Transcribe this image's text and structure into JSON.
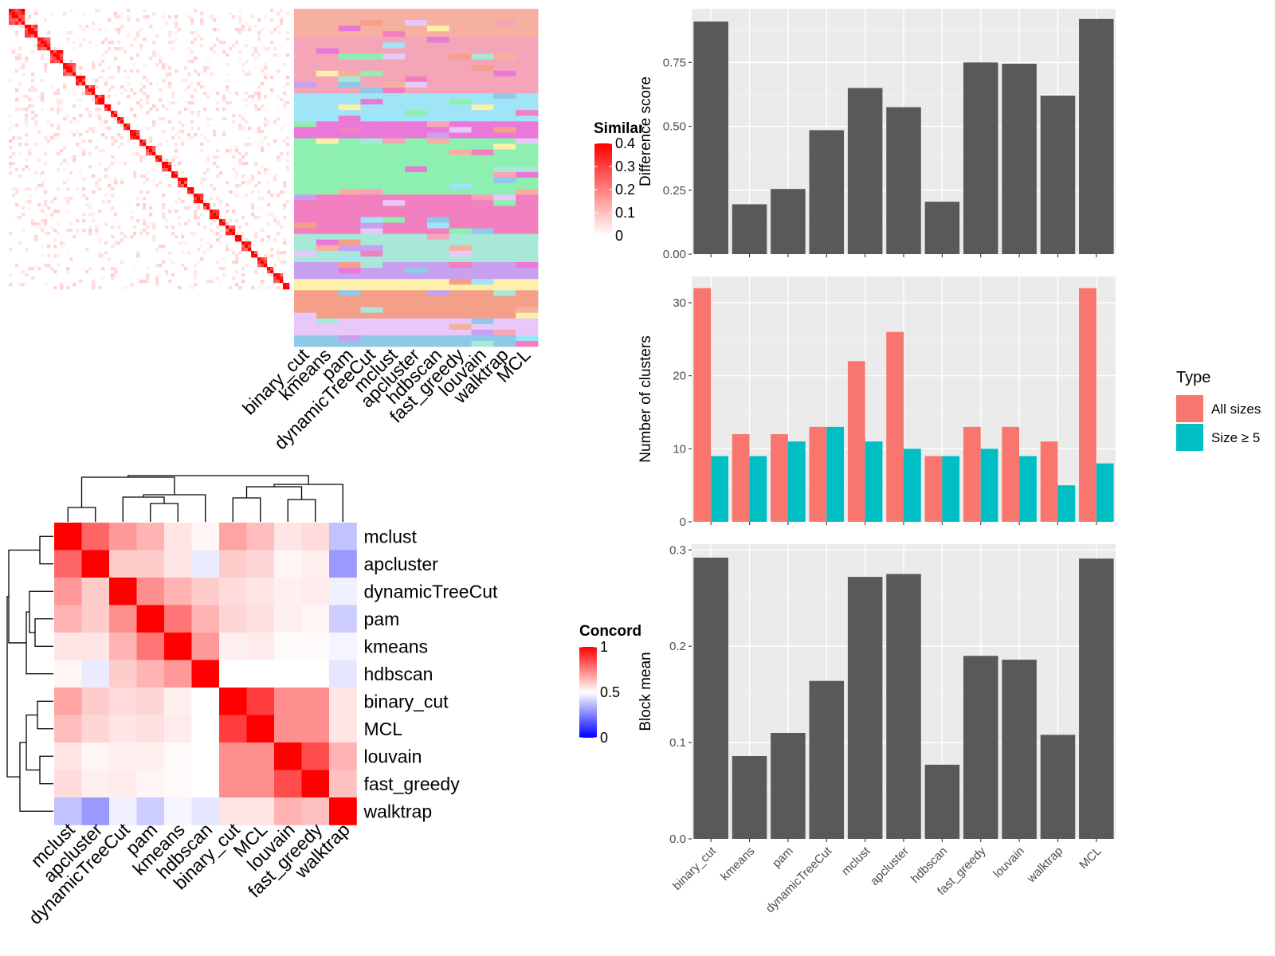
{
  "chart_data": [
    {
      "type": "heatmap",
      "name": "similarity",
      "legend_title": "Similarity",
      "legend_ticks": [
        "0.4",
        "0.3",
        "0.2",
        "0.1",
        "0"
      ],
      "colors": [
        "#ffffff",
        "#ff0000"
      ],
      "diagonal_blocks": 32
    },
    {
      "type": "heatmap",
      "name": "cluster_membership",
      "methods": [
        "binary_cut",
        "kmeans",
        "pam",
        "dynamicTreeCut",
        "mclust",
        "apcluster",
        "hdbscan",
        "fast_greedy",
        "louvain",
        "walktrap",
        "MCL"
      ]
    },
    {
      "type": "heatmap",
      "name": "concordance",
      "legend_title": "Concordance",
      "legend_ticks": [
        "1",
        "0.5",
        "0"
      ],
      "colors": [
        "#0000ff",
        "#ffffff",
        "#ff0000"
      ],
      "labels": [
        "mclust",
        "apcluster",
        "dynamicTreeCut",
        "pam",
        "kmeans",
        "hdbscan",
        "binary_cut",
        "MCL",
        "louvain",
        "fast_greedy",
        "walktrap"
      ],
      "matrix": [
        [
          1.0,
          0.8,
          0.7,
          0.65,
          0.55,
          0.52,
          0.68,
          0.63,
          0.55,
          0.57,
          0.38
        ],
        [
          0.8,
          1.0,
          0.6,
          0.6,
          0.55,
          0.46,
          0.6,
          0.58,
          0.52,
          0.53,
          0.3
        ],
        [
          0.7,
          0.6,
          1.0,
          0.72,
          0.65,
          0.6,
          0.57,
          0.55,
          0.53,
          0.54,
          0.47
        ],
        [
          0.65,
          0.6,
          0.72,
          1.0,
          0.77,
          0.65,
          0.58,
          0.56,
          0.53,
          0.52,
          0.4
        ],
        [
          0.55,
          0.55,
          0.65,
          0.77,
          1.0,
          0.7,
          0.53,
          0.54,
          0.51,
          0.51,
          0.48
        ],
        [
          0.52,
          0.46,
          0.6,
          0.65,
          0.7,
          1.0,
          0.5,
          0.5,
          0.5,
          0.5,
          0.45
        ],
        [
          0.68,
          0.6,
          0.57,
          0.58,
          0.53,
          0.5,
          1.0,
          0.88,
          0.72,
          0.72,
          0.55
        ],
        [
          0.63,
          0.58,
          0.55,
          0.56,
          0.54,
          0.5,
          0.88,
          1.0,
          0.72,
          0.72,
          0.55
        ],
        [
          0.55,
          0.52,
          0.53,
          0.53,
          0.51,
          0.5,
          0.72,
          0.72,
          1.0,
          0.85,
          0.65
        ],
        [
          0.57,
          0.53,
          0.54,
          0.52,
          0.51,
          0.5,
          0.72,
          0.72,
          0.85,
          1.0,
          0.62
        ],
        [
          0.38,
          0.3,
          0.47,
          0.4,
          0.48,
          0.45,
          0.55,
          0.55,
          0.65,
          0.62,
          1.0
        ]
      ]
    },
    {
      "type": "bar",
      "name": "difference_score",
      "categories": [
        "binary_cut",
        "kmeans",
        "pam",
        "dynamicTreeCut",
        "mclust",
        "apcluster",
        "hdbscan",
        "fast_greedy",
        "louvain",
        "walktrap",
        "MCL"
      ],
      "values": [
        0.91,
        0.195,
        0.255,
        0.485,
        0.65,
        0.575,
        0.205,
        0.75,
        0.745,
        0.62,
        0.92
      ],
      "ylabel": "Difference score",
      "ylim": [
        0,
        0.96
      ],
      "yticks": [
        "0.00",
        "0.25",
        "0.50",
        "0.75"
      ],
      "ytick_values": [
        0,
        0.25,
        0.5,
        0.75
      ],
      "color": "#595959"
    },
    {
      "type": "bar",
      "name": "number_of_clusters",
      "categories": [
        "binary_cut",
        "kmeans",
        "pam",
        "dynamicTreeCut",
        "mclust",
        "apcluster",
        "hdbscan",
        "fast_greedy",
        "louvain",
        "walktrap",
        "MCL"
      ],
      "series": [
        {
          "name": "All sizes",
          "color": "#F8766D",
          "values": [
            32,
            12,
            12,
            13,
            22,
            26,
            9,
            13,
            13,
            11,
            32
          ]
        },
        {
          "name": "Size ≥ 5",
          "color": "#00BFC4",
          "values": [
            9,
            9,
            11,
            13,
            11,
            10,
            9,
            10,
            9,
            5,
            8
          ]
        }
      ],
      "ylabel": "Number of clusters",
      "ylim": [
        0,
        33.6
      ],
      "yticks": [
        "0",
        "10",
        "20",
        "30"
      ],
      "ytick_values": [
        0,
        10,
        20,
        30
      ],
      "legend_title": "Type",
      "legend_position": "right"
    },
    {
      "type": "bar",
      "name": "block_mean",
      "categories": [
        "binary_cut",
        "kmeans",
        "pam",
        "dynamicTreeCut",
        "mclust",
        "apcluster",
        "hdbscan",
        "fast_greedy",
        "louvain",
        "walktrap",
        "MCL"
      ],
      "values": [
        0.292,
        0.086,
        0.11,
        0.164,
        0.272,
        0.275,
        0.077,
        0.19,
        0.186,
        0.108,
        0.291
      ],
      "ylabel": "Block mean",
      "ylim": [
        0,
        0.306
      ],
      "yticks": [
        "0.0",
        "0.1",
        "0.2",
        "0.3"
      ],
      "ytick_values": [
        0,
        0.1,
        0.2,
        0.3
      ],
      "color": "#595959"
    }
  ]
}
